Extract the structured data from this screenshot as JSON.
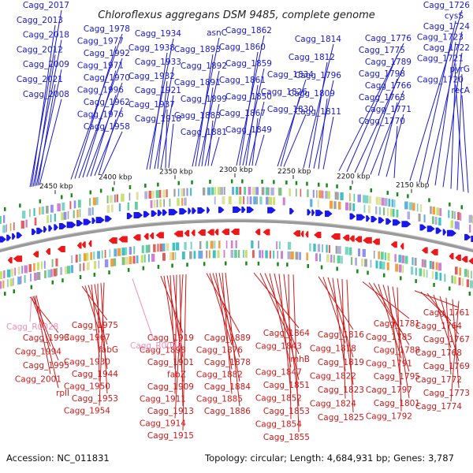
{
  "title": "Chloroflexus aggregans DSM 9485, complete genome",
  "accession": "Accession: NC_011831",
  "topology": "Topology: circular; Length: 4,684,931 bp; Genes: 3,787",
  "colors": {
    "plus_label": "#1a1acc",
    "minus_label": "#cc1a1a",
    "rna_label": "#f090b8",
    "plus_arrow": "#1818ee",
    "minus_arrow": "#ee1818",
    "backbone": "#9a9a9a",
    "gc_green": "#1a8a1a"
  },
  "scale_ticks": [
    "2450 kbp",
    "2400 kbp",
    "2350 kbp",
    "2300 kbp",
    "2250 kbp",
    "2200 kbp",
    "2150 kbp"
  ],
  "plus_genes": [
    "Cagg_2017",
    "Cagg_2013",
    "Cagg_2018",
    "Cagg_2012",
    "Cagg_2009",
    "Cagg_2021",
    "Cagg_2008",
    "Cagg_1978",
    "Cagg_1977",
    "Cagg_1992",
    "Cagg_1971",
    "Cagg_1970",
    "Cagg_1996",
    "Cagg_1962",
    "Cagg_1976",
    "Cagg_1958",
    "Cagg_1934",
    "Cagg_1938",
    "Cagg_1933",
    "Cagg_1932",
    "Cagg_1921",
    "Cagg_1937",
    "Cagg_1918",
    "asnC",
    "Cagg_1893",
    "Cagg_1892",
    "Cagg_1891",
    "Cagg_1899",
    "Cagg_1883",
    "Cagg_1881",
    "Cagg_1862",
    "Cagg_1860",
    "Cagg_1859",
    "Cagg_1861",
    "Cagg_1850",
    "Cagg_1867",
    "Cagg_1849",
    "Cagg_1834",
    "Cagg_1826",
    "Cagg_1830",
    "Cagg_1814",
    "Cagg_1812",
    "Cagg_1796",
    "Cagg_1809",
    "Cagg_1811",
    "Cagg_1776",
    "Cagg_1775",
    "Cagg_1789",
    "Cagg_1798",
    "Cagg_1766",
    "Cagg_1763",
    "Cagg_1771",
    "Cagg_1770",
    "Cagg_1726",
    "cysS",
    "Cagg_1724",
    "Cagg_1723",
    "Cagg_1722",
    "Cagg_1721",
    "pyrG",
    "Cagg_1720",
    "recA"
  ],
  "minus_genes": [
    "Cagg_1993",
    "Cagg_1994",
    "Cagg_1995",
    "Cagg_2001",
    "rplI",
    "Cagg_1975",
    "Cagg_1967",
    "fabG",
    "Cagg_1930",
    "Cagg_1944",
    "Cagg_1950",
    "Cagg_1953",
    "Cagg_1954",
    "Cagg_1919",
    "Cagg_1898",
    "Cagg_1901",
    "fabZ",
    "Cagg_1909",
    "Cagg_1911",
    "Cagg_1913",
    "Cagg_1914",
    "Cagg_1915",
    "Cagg_1889",
    "Cagg_1876",
    "Cagg_1878",
    "Cagg_1882",
    "Cagg_1884",
    "Cagg_1885",
    "Cagg_1886",
    "Cagg_1864",
    "Cagg_1843",
    "rnhB",
    "Cagg_1847",
    "Cagg_1851",
    "Cagg_1852",
    "Cagg_1853",
    "Cagg_1854",
    "Cagg_1855",
    "Cagg_1816",
    "Cagg_1818",
    "Cagg_1819",
    "Cagg_1822",
    "Cagg_1823",
    "Cagg_1824",
    "Cagg_1825",
    "Cagg_1781",
    "Cagg_1785",
    "Cagg_1788",
    "Cagg_1791",
    "Cagg_1795",
    "Cagg_1797",
    "Cagg_1801",
    "Cagg_1792",
    "Cagg_1761",
    "Cagg_1764",
    "Cagg_1767",
    "Cagg_1768",
    "Cagg_1769",
    "Cagg_1772",
    "Cagg_1773",
    "Cagg_1774"
  ],
  "rna_genes": [
    "Cagg_R0028",
    "Cagg_R0027"
  ]
}
